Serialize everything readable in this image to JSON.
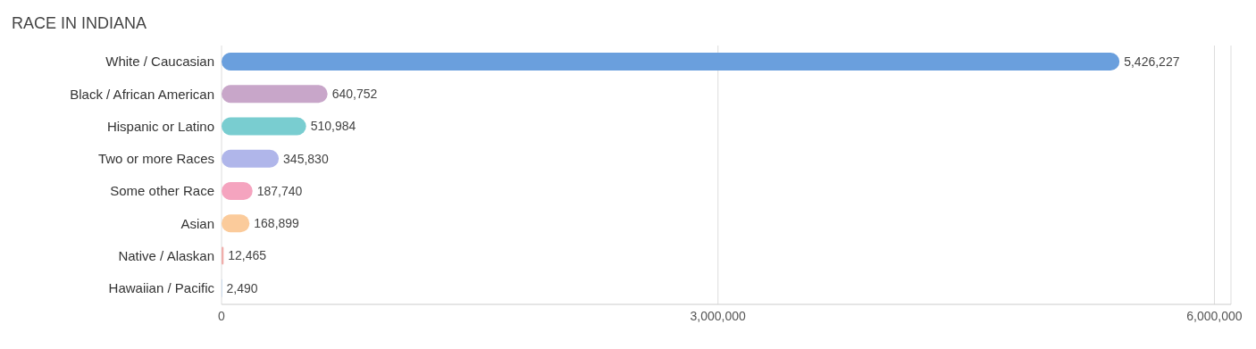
{
  "chart_data": {
    "type": "bar",
    "orientation": "horizontal",
    "title": "RACE IN INDIANA",
    "categories": [
      "White / Caucasian",
      "Black / African American",
      "Hispanic or Latino",
      "Two or more Races",
      "Some other Race",
      "Asian",
      "Native / Alaskan",
      "Hawaiian / Pacific"
    ],
    "values": [
      5426227,
      640752,
      510984,
      345830,
      187740,
      168899,
      12465,
      2490
    ],
    "value_labels": [
      "5,426,227",
      "640,752",
      "510,984",
      "345,830",
      "187,740",
      "168,899",
      "12,465",
      "2,490"
    ],
    "colors": [
      "#6a9fdd",
      "#c8a6c9",
      "#79cdd0",
      "#b0b6ea",
      "#f5a4bf",
      "#fbcb9b",
      "#f0aeab",
      "#a9c6ec"
    ],
    "xlim": [
      0,
      6100000
    ],
    "xticks": [
      0,
      {
        "value": 3000000,
        "label": "3,000,000"
      },
      {
        "value": 6000000,
        "label": "6,000,000"
      }
    ],
    "grid": "x"
  }
}
